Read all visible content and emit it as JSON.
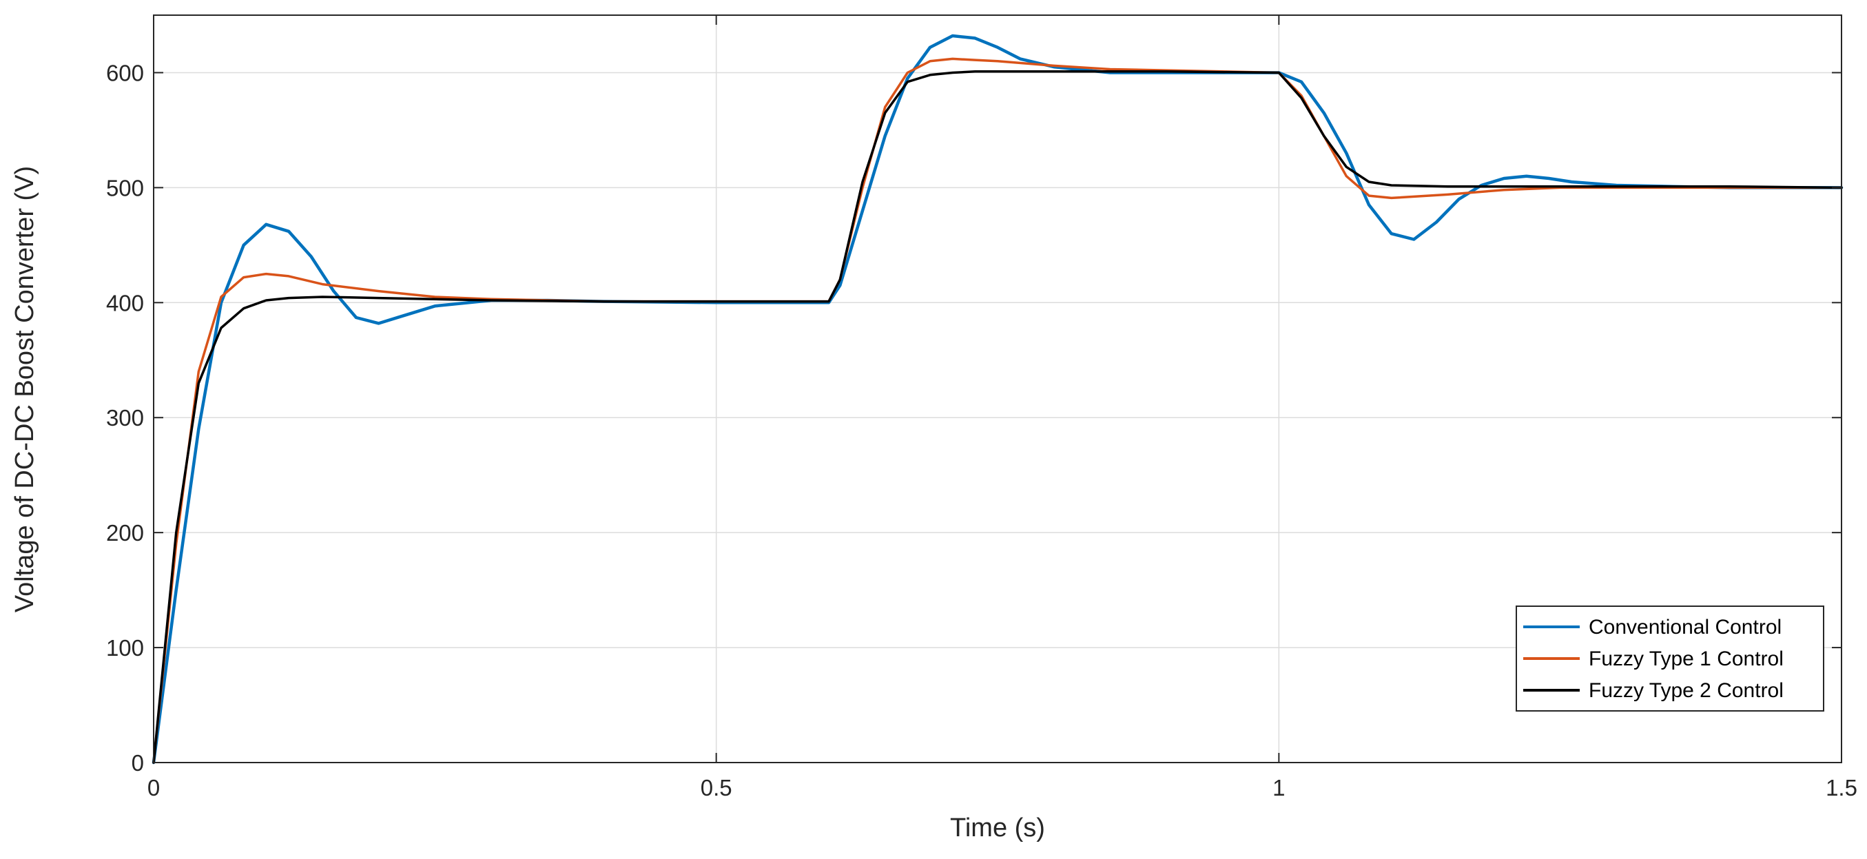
{
  "chart_data": {
    "type": "line",
    "title": "",
    "xlabel": "Time (s)",
    "ylabel": "Voltage of DC-DC Boost Converter (V)",
    "xlim": [
      0,
      1.5
    ],
    "ylim": [
      0,
      650
    ],
    "x_ticks": [
      0,
      0.5,
      1,
      1.5
    ],
    "x_tick_labels": [
      "0",
      "0.5",
      "1",
      "1.5"
    ],
    "y_ticks": [
      0,
      100,
      200,
      300,
      400,
      500,
      600
    ],
    "y_tick_labels": [
      "0",
      "100",
      "200",
      "300",
      "400",
      "500",
      "600"
    ],
    "grid": true,
    "legend_position": "bottom-right",
    "series": [
      {
        "name": "Conventional Control",
        "color": "#0072BD",
        "x": [
          0,
          0.02,
          0.04,
          0.06,
          0.08,
          0.1,
          0.12,
          0.14,
          0.16,
          0.18,
          0.2,
          0.22,
          0.25,
          0.3,
          0.35,
          0.4,
          0.5,
          0.6,
          0.61,
          0.63,
          0.65,
          0.67,
          0.69,
          0.71,
          0.73,
          0.75,
          0.77,
          0.8,
          0.85,
          0.9,
          0.95,
          1.0,
          1.02,
          1.04,
          1.06,
          1.08,
          1.1,
          1.12,
          1.14,
          1.16,
          1.18,
          1.2,
          1.22,
          1.24,
          1.26,
          1.3,
          1.35,
          1.4,
          1.45,
          1.5
        ],
        "y": [
          0,
          150,
          290,
          400,
          450,
          468,
          462,
          440,
          410,
          387,
          382,
          388,
          397,
          402,
          402,
          401,
          400,
          400,
          415,
          480,
          545,
          595,
          622,
          632,
          630,
          622,
          612,
          605,
          600,
          600,
          600,
          600,
          592,
          565,
          530,
          485,
          460,
          455,
          470,
          490,
          502,
          508,
          510,
          508,
          505,
          502,
          501,
          500,
          500,
          500
        ]
      },
      {
        "name": "Fuzzy Type 1 Control",
        "color": "#D95319",
        "x": [
          0,
          0.02,
          0.04,
          0.06,
          0.08,
          0.1,
          0.12,
          0.15,
          0.2,
          0.25,
          0.3,
          0.4,
          0.5,
          0.6,
          0.61,
          0.63,
          0.65,
          0.67,
          0.69,
          0.71,
          0.73,
          0.75,
          0.8,
          0.85,
          0.9,
          0.95,
          1.0,
          1.02,
          1.04,
          1.06,
          1.08,
          1.1,
          1.15,
          1.2,
          1.25,
          1.3,
          1.4,
          1.5
        ],
        "y": [
          0,
          190,
          340,
          405,
          422,
          425,
          423,
          416,
          410,
          405,
          403,
          401,
          401,
          401,
          420,
          500,
          570,
          600,
          610,
          612,
          611,
          610,
          606,
          603,
          602,
          601,
          600,
          580,
          545,
          510,
          493,
          491,
          494,
          498,
          500,
          500,
          500,
          500
        ]
      },
      {
        "name": "Fuzzy Type 2 Control",
        "color": "#000000",
        "x": [
          0,
          0.02,
          0.04,
          0.06,
          0.08,
          0.1,
          0.12,
          0.15,
          0.2,
          0.3,
          0.4,
          0.5,
          0.6,
          0.61,
          0.63,
          0.65,
          0.67,
          0.69,
          0.71,
          0.73,
          0.75,
          0.8,
          0.9,
          1.0,
          1.02,
          1.04,
          1.06,
          1.08,
          1.1,
          1.15,
          1.2,
          1.3,
          1.4,
          1.5
        ],
        "y": [
          0,
          200,
          330,
          378,
          395,
          402,
          404,
          405,
          404,
          402,
          401,
          401,
          401,
          420,
          505,
          565,
          592,
          598,
          600,
          601,
          601,
          601,
          601,
          600,
          578,
          545,
          518,
          505,
          502,
          501,
          501,
          501,
          501,
          500
        ]
      }
    ]
  }
}
